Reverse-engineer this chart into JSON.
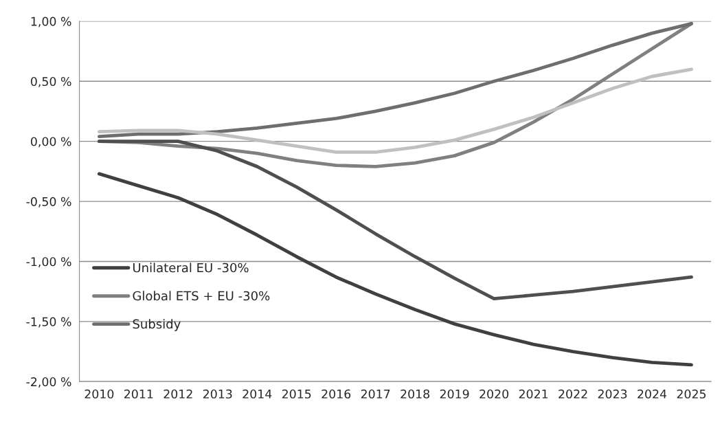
{
  "chart_data": {
    "type": "line",
    "categories": [
      "2010",
      "2011",
      "2012",
      "2013",
      "2014",
      "2015",
      "2016",
      "2017",
      "2018",
      "2019",
      "2020",
      "2021",
      "2022",
      "2023",
      "2024",
      "2025"
    ],
    "series": [
      {
        "name": "Unilateral EU -30%",
        "color": "#404040",
        "values": [
          -0.27,
          -0.37,
          -0.47,
          -0.61,
          -0.78,
          -0.96,
          -1.13,
          -1.27,
          -1.4,
          -1.52,
          -1.61,
          -1.69,
          -1.75,
          -1.8,
          -1.84,
          -1.86
        ]
      },
      {
        "name": "Global ETS + EU -30%",
        "color": "#808080",
        "values": [
          0.0,
          -0.01,
          -0.04,
          -0.06,
          -0.1,
          -0.16,
          -0.2,
          -0.21,
          -0.18,
          -0.12,
          -0.01,
          0.16,
          0.35,
          0.56,
          0.77,
          0.98
        ]
      },
      {
        "name": "Subsidy",
        "color": "#6e6e6e",
        "values": [
          0.04,
          0.06,
          0.06,
          0.08,
          0.11,
          0.15,
          0.19,
          0.25,
          0.32,
          0.4,
          0.5,
          0.59,
          0.69,
          0.8,
          0.9,
          0.98
        ]
      },
      {
        "color": "#4f4f4f",
        "values": [
          0.0,
          0.0,
          0.0,
          -0.08,
          -0.21,
          -0.38,
          -0.57,
          -0.77,
          -0.96,
          -1.14,
          -1.31,
          -1.28,
          -1.25,
          -1.21,
          -1.17,
          -1.13
        ]
      },
      {
        "color": "#c0c0c0",
        "values": [
          0.08,
          0.09,
          0.09,
          0.06,
          0.01,
          -0.04,
          -0.09,
          -0.09,
          -0.05,
          0.01,
          0.1,
          0.2,
          0.32,
          0.44,
          0.54,
          0.6
        ]
      }
    ],
    "ylim": [
      -2,
      1
    ],
    "yticks": [
      {
        "value": -2,
        "label": "-2,00 %"
      },
      {
        "value": -1.5,
        "label": "-1,50 %"
      },
      {
        "value": -1,
        "label": "-1,00 %"
      },
      {
        "value": -0.5,
        "label": "-0,50 %"
      },
      {
        "value": 0,
        "label": "0,00 %"
      },
      {
        "value": 0.5,
        "label": "0,50 %"
      },
      {
        "value": 1,
        "label": "1,00 %"
      }
    ],
    "grid": "y",
    "legend": "left",
    "marker": "none",
    "line_style": "solid"
  }
}
